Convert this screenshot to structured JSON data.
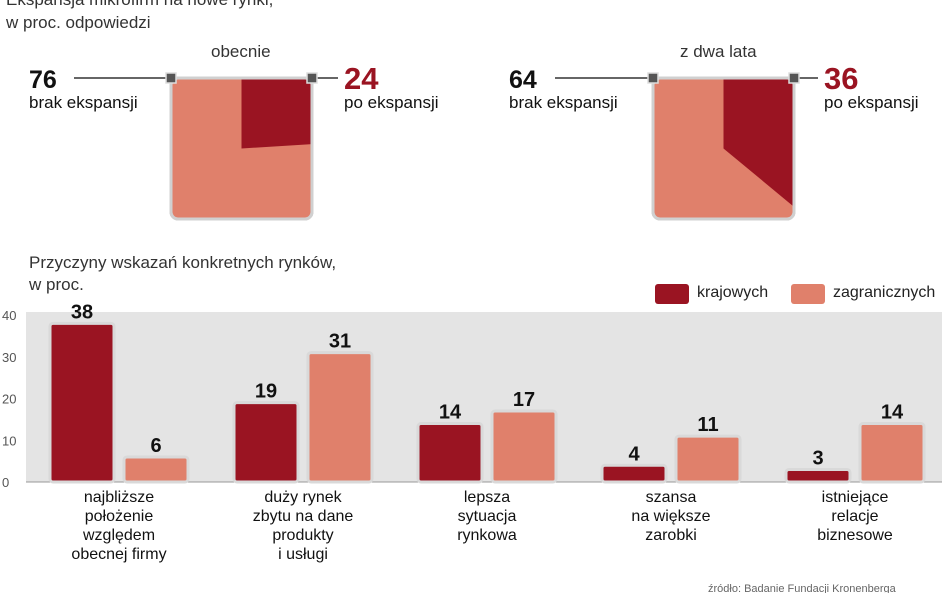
{
  "header": {
    "title_line1": "Ekspansja mikrofirm na nowe rynki,",
    "title_line2": "w proc. odpowiedzi"
  },
  "colors": {
    "dark_red": "#9a1422",
    "salmon": "#e0806b",
    "plot_bg": "#e4e4e4"
  },
  "chart_data": [
    {
      "type": "pie",
      "title": "obecnie",
      "slices": [
        {
          "label": "brak ekspansji",
          "value": 76
        },
        {
          "label": "po ekspansji",
          "value": 24
        }
      ]
    },
    {
      "type": "pie",
      "title": "z dwa lata",
      "slices": [
        {
          "label": "brak ekspansji",
          "value": 64
        },
        {
          "label": "po ekspansji",
          "value": 36
        }
      ]
    },
    {
      "type": "bar",
      "title_line1": "Przyczyny wskazań konkretnych rynków,",
      "title_line2": "w proc.",
      "categories": [
        [
          "najbliższe",
          "położenie",
          "względem",
          "obecnej firmy"
        ],
        [
          "duży rynek",
          "zbytu na dane",
          "produkty",
          "i usługi"
        ],
        [
          "lepsza",
          "sytuacja",
          "rynkowa"
        ],
        [
          "szansa",
          "na większe",
          "zarobki"
        ],
        [
          "istniejące",
          "relacje",
          "biznesowe"
        ]
      ],
      "series": [
        {
          "name": "krajowych",
          "values": [
            38,
            19,
            14,
            4,
            3
          ]
        },
        {
          "name": "zagranicznych",
          "values": [
            6,
            31,
            17,
            11,
            14
          ]
        }
      ],
      "ylim": [
        0,
        40
      ],
      "yticks": [
        "0",
        "10",
        "20",
        "30",
        "40"
      ],
      "legend": "top-right",
      "grid": false
    }
  ],
  "source": "źródło: Badanie Fundacji Kronenberga"
}
